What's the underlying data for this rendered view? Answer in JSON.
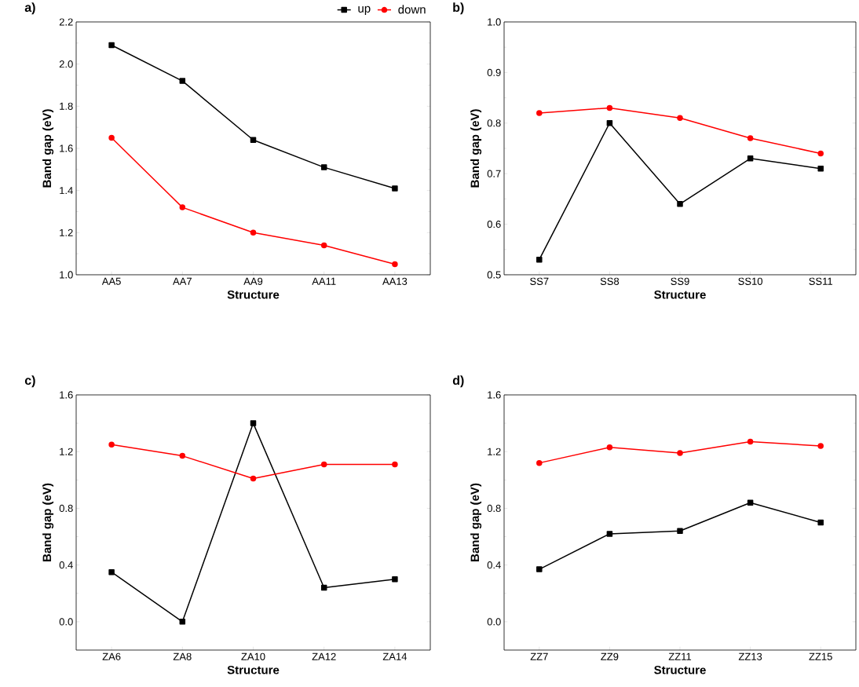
{
  "chart_data": [
    {
      "type": "line",
      "title": "a)",
      "xlabel": "Structure",
      "ylabel": "Band gap (eV)",
      "categories": [
        "AA5",
        "AA7",
        "AA9",
        "AA11",
        "AA13"
      ],
      "ylim": [
        1.0,
        2.2
      ],
      "yticks": [
        {
          "value": 1.0,
          "label": "1.0"
        },
        1.2,
        1.4,
        1.6,
        1.8,
        {
          "value": 2.0,
          "label": "2.0"
        },
        2.2
      ],
      "legend": "top",
      "series": [
        {
          "name": "up",
          "color": "#000000",
          "marker": "square",
          "values": [
            2.09,
            1.92,
            1.64,
            1.51,
            1.41
          ]
        },
        {
          "name": "down",
          "color": "#ff0000",
          "marker": "circle",
          "values": [
            1.65,
            1.32,
            1.2,
            1.14,
            1.05
          ]
        }
      ]
    },
    {
      "type": "line",
      "title": "b)",
      "xlabel": "Structure",
      "ylabel": "Band gap (eV)",
      "categories": [
        "SS7",
        "SS8",
        "SS9",
        "SS10",
        "SS11"
      ],
      "ylim": [
        0.5,
        1.0
      ],
      "yticks": [
        0.5,
        0.6,
        0.7,
        0.8,
        0.9,
        {
          "value": 1.0,
          "label": "1.0"
        }
      ],
      "series": [
        {
          "color": "#000000",
          "marker": "square",
          "values": [
            0.53,
            0.8,
            0.64,
            0.73,
            0.71
          ]
        },
        {
          "color": "#ff0000",
          "marker": "circle",
          "values": [
            0.82,
            0.83,
            0.81,
            0.77,
            0.74
          ]
        }
      ]
    },
    {
      "type": "line",
      "title": "c)",
      "xlabel": "Structure",
      "ylabel": "Band gap (eV)",
      "categories": [
        "ZA6",
        "ZA8",
        "ZA10",
        "ZA12",
        "ZA14"
      ],
      "ylim": [
        -0.2,
        1.6
      ],
      "yticks": [
        {
          "value": 0.0,
          "label": "0.0"
        },
        0.4,
        0.8,
        1.2,
        1.6
      ],
      "series": [
        {
          "color": "#000000",
          "marker": "square",
          "values": [
            0.35,
            0.0,
            1.4,
            0.24,
            0.3
          ]
        },
        {
          "color": "#ff0000",
          "marker": "circle",
          "values": [
            1.25,
            1.17,
            1.01,
            1.11,
            1.11
          ]
        }
      ]
    },
    {
      "type": "line",
      "title": "d)",
      "xlabel": "Structure",
      "ylabel": "Band gap (eV)",
      "categories": [
        "ZZ7",
        "ZZ9",
        "ZZ11",
        "ZZ13",
        "ZZ15"
      ],
      "ylim": [
        -0.2,
        1.6
      ],
      "yticks": [
        {
          "value": 0.0,
          "label": "0.0"
        },
        0.4,
        0.8,
        1.2,
        1.6
      ],
      "series": [
        {
          "color": "#000000",
          "marker": "square",
          "values": [
            0.37,
            0.62,
            0.64,
            0.84,
            0.7
          ]
        },
        {
          "color": "#ff0000",
          "marker": "circle",
          "values": [
            1.12,
            1.23,
            1.19,
            1.27,
            1.24
          ]
        }
      ]
    }
  ]
}
